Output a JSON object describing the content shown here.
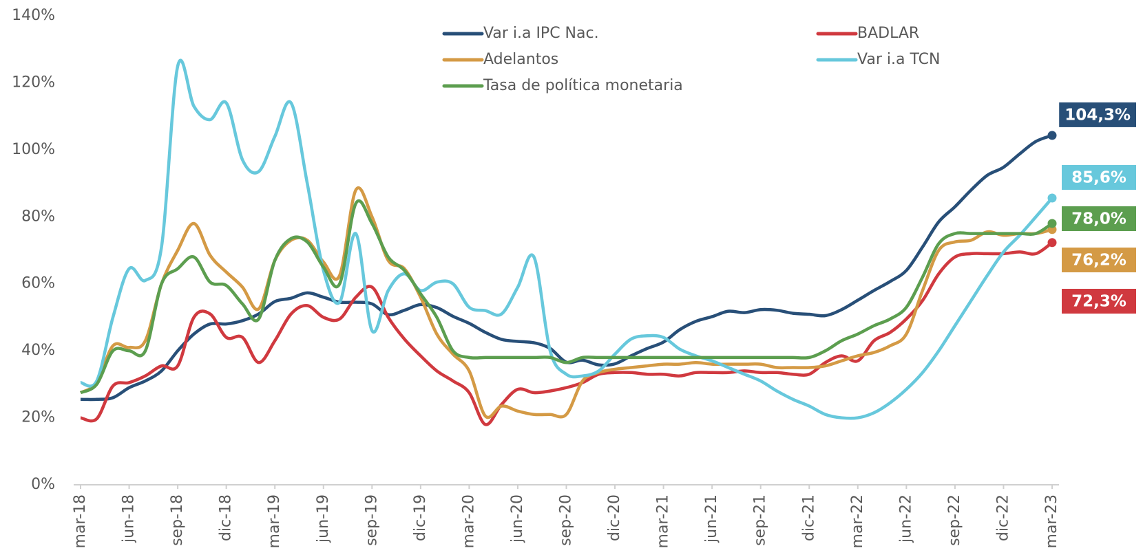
{
  "chart_data": {
    "type": "line",
    "categories": [
      "mar-18",
      null,
      null,
      "jun-18",
      null,
      null,
      "sep-18",
      null,
      null,
      "dic-18",
      null,
      null,
      "mar-19",
      null,
      null,
      "jun-19",
      null,
      null,
      "sep-19",
      null,
      null,
      "dic-19",
      null,
      null,
      "mar-20",
      null,
      null,
      "jun-20",
      null,
      null,
      "sep-20",
      null,
      null,
      "dic-20",
      null,
      null,
      "mar-21",
      null,
      null,
      "jun-21",
      null,
      null,
      "sep-21",
      null,
      null,
      "dic-21",
      null,
      null,
      "mar-22",
      null,
      null,
      "jun-22",
      null,
      null,
      "sep-22",
      null,
      null,
      "dic-22",
      null,
      null,
      "mar-23"
    ],
    "ylim": [
      0,
      140
    ],
    "yticks": [
      {
        "value": 0,
        "label": "0%"
      },
      {
        "value": 20,
        "label": "20%"
      },
      {
        "value": 40,
        "label": "40%"
      },
      {
        "value": 60,
        "label": "60%"
      },
      {
        "value": 80,
        "label": "80%"
      },
      {
        "value": 100,
        "label": "100%"
      },
      {
        "value": 120,
        "label": "120%"
      },
      {
        "value": 140,
        "label": "140%"
      }
    ],
    "grid": false,
    "legend": "top",
    "series": [
      {
        "name": "Var i.a IPC Nac.",
        "color": "#284f78",
        "end_label": "104,3%",
        "values": [
          25.5,
          25.5,
          26,
          29,
          31,
          34,
          40,
          45,
          48,
          48,
          49,
          51,
          54.7,
          55.7,
          57.3,
          56,
          54.5,
          54.5,
          54,
          50.8,
          52.1,
          53.8,
          52.9,
          50.3,
          48.2,
          45.5,
          43.4,
          42.8,
          42.4,
          40.7,
          36.6,
          37.2,
          35.8,
          36.1,
          38.5,
          40.7,
          42.6,
          46.3,
          48.8,
          50.2,
          51.8,
          51.4,
          52.3,
          52.1,
          51.2,
          50.9,
          50.5,
          52.3,
          55.1,
          58,
          60.7,
          64,
          71,
          78.5,
          83,
          88,
          92.4,
          94.8,
          98.8,
          102.5,
          104.3
        ]
      },
      {
        "name": "BADLAR",
        "color": "#d0393f",
        "end_label": "72,3%",
        "values": [
          20,
          19.7,
          29.5,
          30.5,
          32.5,
          35.5,
          35.5,
          50,
          51,
          44,
          44,
          36.5,
          43,
          51,
          53.5,
          50,
          49.5,
          56,
          59,
          50,
          43.5,
          38.5,
          34,
          31,
          27.5,
          18,
          24,
          28.5,
          27.5,
          28,
          29,
          30.5,
          33,
          33.5,
          33.5,
          33,
          33,
          32.5,
          33.5,
          33.5,
          33.5,
          34,
          33.5,
          33.5,
          33,
          33,
          36.5,
          38.5,
          37,
          43,
          45.5,
          49.5,
          55,
          63,
          68,
          69,
          69,
          69,
          69.5,
          69,
          72.3
        ]
      },
      {
        "name": "Adelantos",
        "color": "#d49a45",
        "end_label": "76,2%",
        "values": [
          27.5,
          30.5,
          41.5,
          41,
          43,
          60,
          70,
          78,
          68.5,
          63.5,
          59,
          52.5,
          67,
          73,
          73,
          66.5,
          62.5,
          88,
          80,
          67,
          64.5,
          56,
          45,
          39,
          34,
          20.5,
          23.5,
          22,
          21,
          21,
          21,
          31,
          33.5,
          34.5,
          35,
          35.5,
          36,
          36,
          36.5,
          36,
          36,
          36,
          36,
          35,
          35,
          35,
          35.5,
          37,
          38.5,
          39.5,
          41.5,
          45,
          58,
          70,
          72.5,
          73,
          75.5,
          74.5,
          75,
          75,
          76.2
        ]
      },
      {
        "name": "Var i.a TCN",
        "color": "#67c8dc",
        "end_label": "85,6%",
        "values": [
          30.5,
          31,
          50,
          64.5,
          61,
          71,
          125,
          113,
          109,
          114,
          97,
          93.5,
          104,
          114,
          90,
          64,
          54.5,
          75,
          46,
          58,
          63,
          58,
          60.5,
          60,
          53,
          52,
          51,
          59,
          68,
          40,
          33,
          32.5,
          34,
          39,
          43.5,
          44.5,
          44,
          40.5,
          38.5,
          37,
          35,
          33,
          31,
          28,
          25.5,
          23.5,
          21,
          20,
          20,
          21.5,
          24.5,
          28.5,
          33.5,
          40,
          47.5,
          55,
          62.5,
          69.5,
          74.5,
          80,
          85.6
        ]
      },
      {
        "name": "Tasa de política monetaria",
        "color": "#5c9e4f",
        "end_label": "78,0%",
        "values": [
          27.5,
          30,
          40,
          40,
          40,
          60,
          64.5,
          68,
          60.5,
          59.5,
          54,
          49.5,
          67,
          73.5,
          72.5,
          65,
          60,
          84,
          78,
          68,
          64,
          57,
          50,
          40,
          38,
          38,
          38,
          38,
          38,
          38,
          36.5,
          38,
          38,
          38,
          38,
          38,
          38,
          38,
          38,
          38,
          38,
          38,
          38,
          38,
          38,
          38,
          40,
          43,
          45,
          47.5,
          49.5,
          53,
          62,
          72,
          75,
          75,
          75,
          75,
          75,
          75,
          78
        ]
      }
    ]
  }
}
